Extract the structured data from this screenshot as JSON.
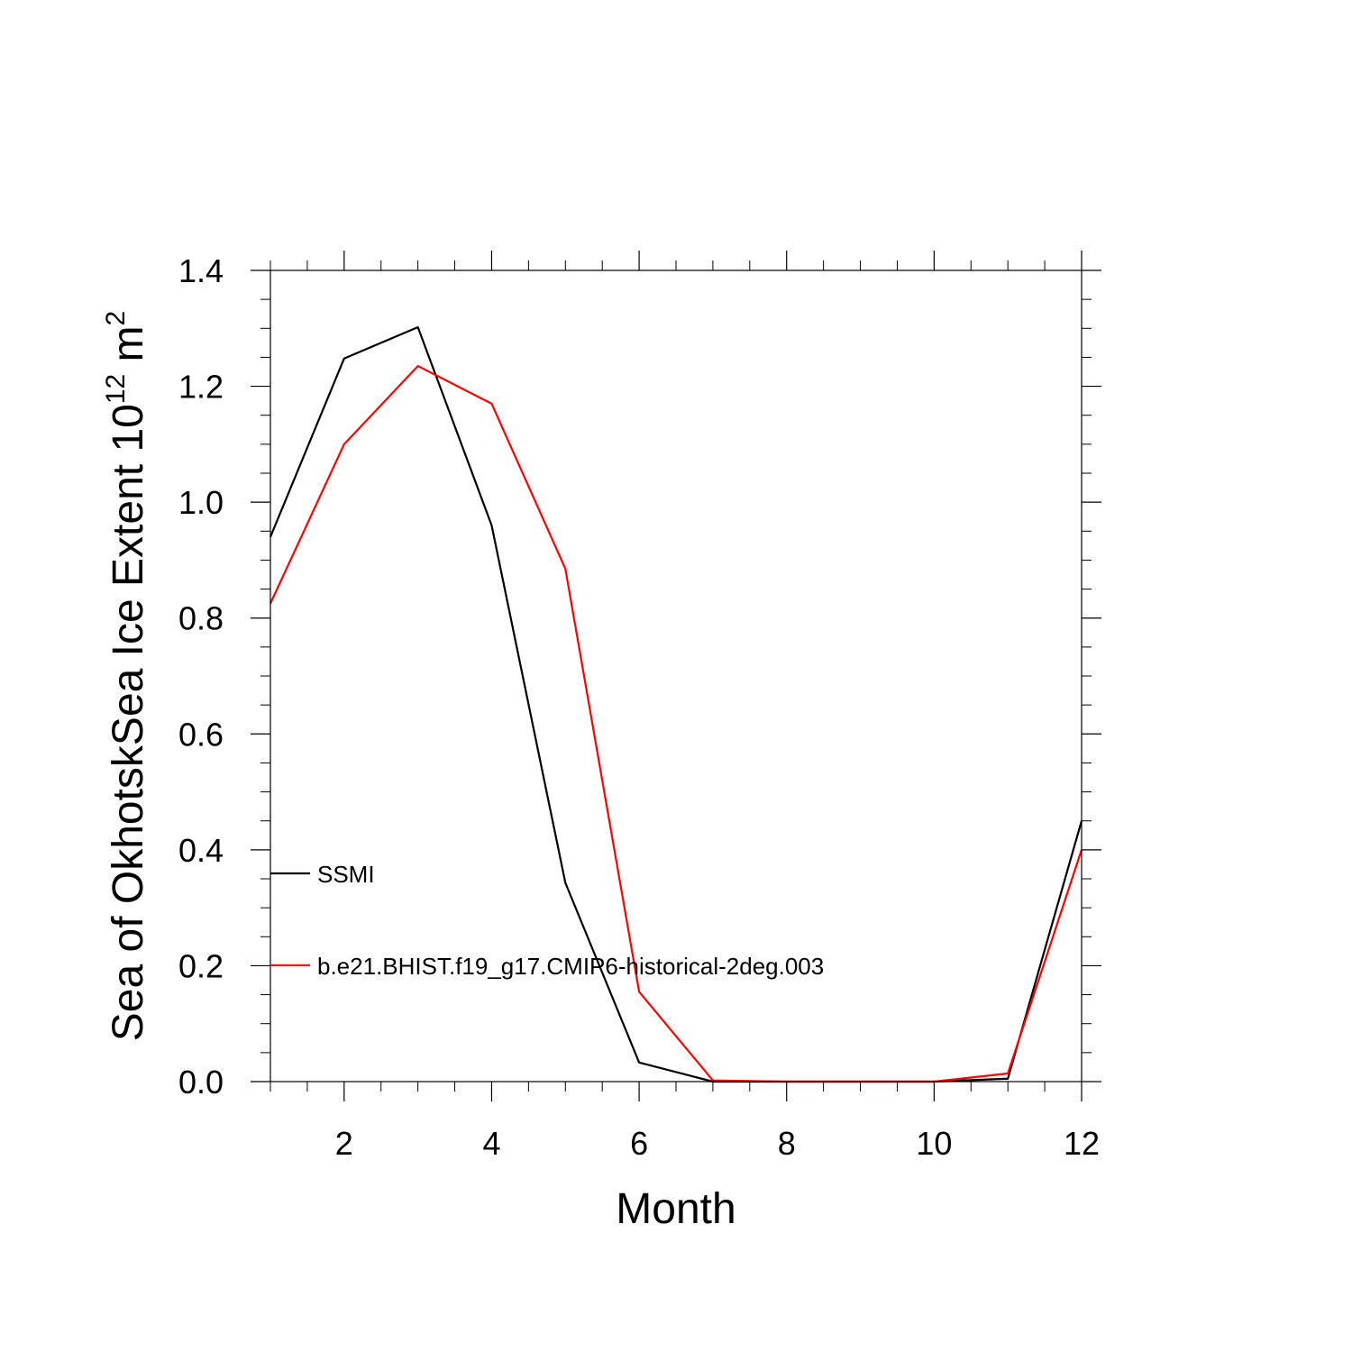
{
  "chart_data": {
    "type": "line",
    "xlabel": "Month",
    "ylabel": {
      "base": "Sea of OkhotskSea Ice Extent 10",
      "exponent": "12",
      "unit": " m",
      "unit_exponent": "2"
    },
    "xlim": [
      1,
      12
    ],
    "ylim": [
      0.0,
      1.4
    ],
    "x_ticks": [
      2,
      4,
      6,
      8,
      10,
      12
    ],
    "x_tick_labels": [
      "2",
      "4",
      "6",
      "8",
      "10",
      "12"
    ],
    "y_ticks": [
      0.0,
      0.2,
      0.4,
      0.6,
      0.8,
      1.0,
      1.2,
      1.4
    ],
    "y_tick_labels": [
      "0.0",
      "0.2",
      "0.4",
      "0.6",
      "0.8",
      "1.0",
      "1.2",
      "1.4"
    ],
    "grid": false,
    "legend_position": "bottom-left inside",
    "x": [
      1,
      2,
      3,
      4,
      5,
      6,
      7,
      8,
      9,
      10,
      11,
      12
    ],
    "series": [
      {
        "name": "SSMI",
        "color": "#000000",
        "values": [
          0.94,
          1.248,
          1.302,
          0.96,
          0.343,
          0.033,
          0.0,
          0.0,
          0.0,
          0.0,
          0.005,
          0.45
        ]
      },
      {
        "name": "b.e21.BHIST.f19_g17.CMIP6-historical-2deg.003",
        "color": "#ff0000",
        "values": [
          0.825,
          1.1,
          1.235,
          1.17,
          0.885,
          0.155,
          0.002,
          0.0,
          0.0,
          0.0,
          0.014,
          0.4
        ]
      }
    ]
  }
}
